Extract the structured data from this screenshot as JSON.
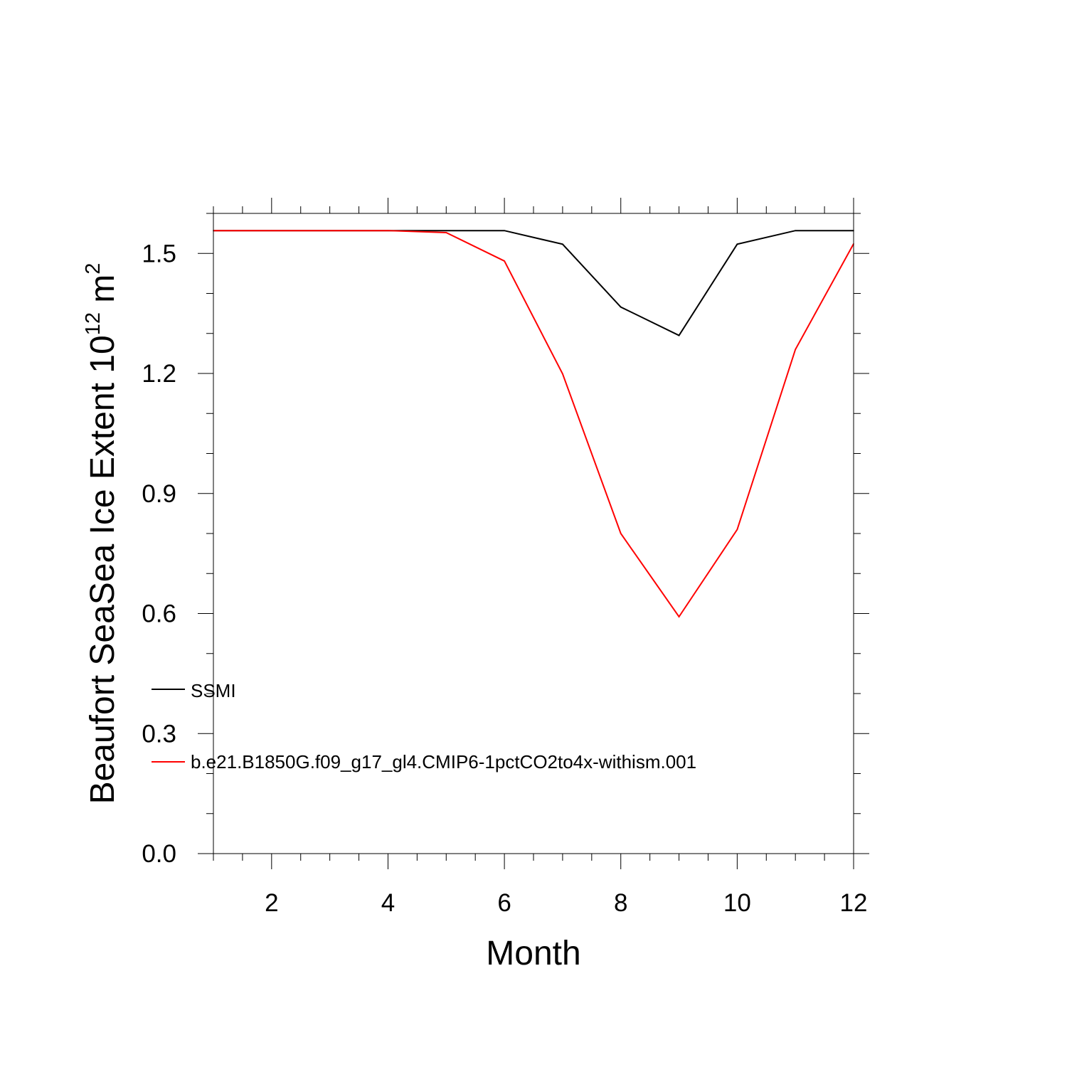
{
  "chart_data": {
    "type": "line",
    "xlabel": "Month",
    "ylabel_main": "Beaufort SeaSea Ice Extent 10",
    "ylabel_exponent": "12",
    "ylabel_unit_main": " m",
    "ylabel_unit_exponent": "2",
    "xlim": [
      1,
      12
    ],
    "ylim": [
      0,
      1.6
    ],
    "x_ticks": [
      2,
      4,
      6,
      8,
      10,
      12
    ],
    "x_tick_labels": [
      "2",
      "4",
      "6",
      "8",
      "10",
      "12"
    ],
    "y_ticks": [
      0,
      0.3,
      0.6,
      0.9,
      1.2,
      1.5
    ],
    "y_tick_labels": [
      "0.0",
      "0.3",
      "0.6",
      "0.9",
      "1.2",
      "1.5"
    ],
    "grid": false,
    "legend_position": "left",
    "x": [
      1,
      2,
      3,
      4,
      5,
      6,
      7,
      8,
      9,
      10,
      11,
      12
    ],
    "series": [
      {
        "name": "SSMI",
        "color": "#000000",
        "values": [
          1.557,
          1.557,
          1.557,
          1.557,
          1.557,
          1.557,
          1.523,
          1.366,
          1.295,
          1.523,
          1.557,
          1.557
        ]
      },
      {
        "name": "b.e21.B1850G.f09_g17_gl4.CMIP6-1pctCO2to4x-withism.001",
        "color": "#ff0000",
        "values": [
          1.557,
          1.557,
          1.557,
          1.557,
          1.552,
          1.481,
          1.199,
          0.8,
          0.592,
          0.81,
          1.26,
          1.524
        ]
      }
    ]
  }
}
